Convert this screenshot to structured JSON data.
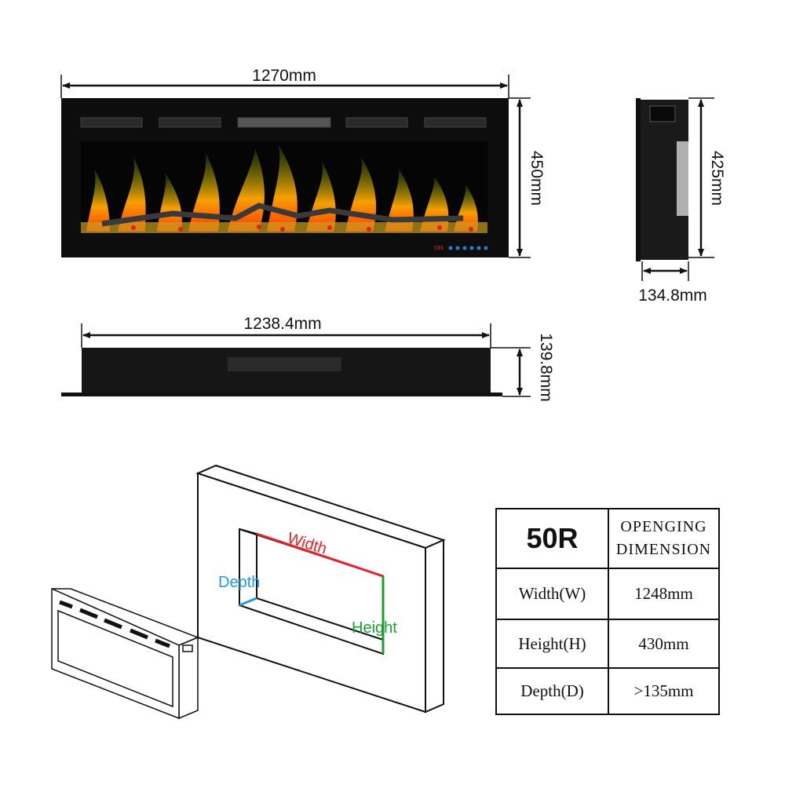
{
  "front_view": {
    "width_label": "1270mm",
    "height_label": "450mm",
    "display_code": "C01"
  },
  "side_view": {
    "height_label": "425mm",
    "depth_label": "134.8mm"
  },
  "top_view": {
    "width_label": "1238.4mm",
    "depth_label": "139.8mm"
  },
  "opening_diagram": {
    "width_label": "Width",
    "depth_label": "Depth",
    "height_label": "Height",
    "colors": {
      "width": "#e8202a",
      "depth": "#1e9be0",
      "height": "#1aa032"
    }
  },
  "table": {
    "model": "50R",
    "header": "OPENGING DIMENSION",
    "rows": [
      {
        "label": "Width(W)",
        "value": "1248mm"
      },
      {
        "label": "Height(H)",
        "value": "430mm"
      },
      {
        "label": "Depth(D)",
        "value": ">135mm"
      }
    ]
  }
}
